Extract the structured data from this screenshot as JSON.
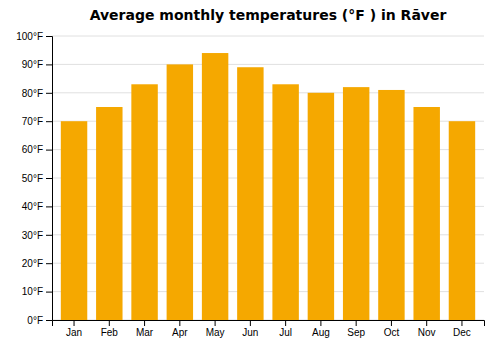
{
  "chart_data": {
    "type": "bar",
    "title": "Average monthly temperatures (°F ) in Rāver",
    "categories": [
      "Jan",
      "Feb",
      "Mar",
      "Apr",
      "May",
      "Jun",
      "Jul",
      "Aug",
      "Sep",
      "Oct",
      "Nov",
      "Dec"
    ],
    "values": [
      70,
      75,
      83,
      90,
      94,
      89,
      83,
      80,
      82,
      81,
      75,
      70
    ],
    "color": "#F5A800",
    "ylim": [
      0,
      100
    ],
    "yticks": [
      {
        "value": 0,
        "label": "0°F"
      },
      {
        "value": 10,
        "label": "10°F"
      },
      {
        "value": 20,
        "label": "20°F"
      },
      {
        "value": 30,
        "label": "30°F"
      },
      {
        "value": 40,
        "label": "40°F"
      },
      {
        "value": 50,
        "label": "50°F"
      },
      {
        "value": 60,
        "label": "60°F"
      },
      {
        "value": 70,
        "label": "70°F"
      },
      {
        "value": 80,
        "label": "80°F"
      },
      {
        "value": 90,
        "label": "90°F"
      },
      {
        "value": 100,
        "label": "100°F"
      }
    ],
    "grid": true
  }
}
